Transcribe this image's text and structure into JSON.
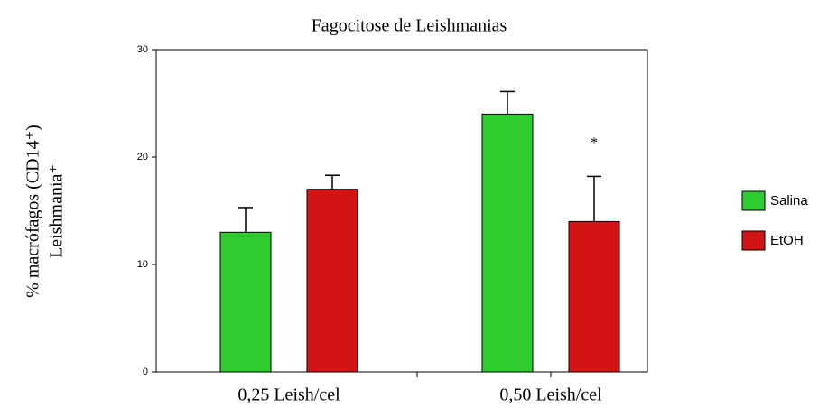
{
  "chart_data": {
    "type": "bar",
    "title": "Fagocitose de Leishmanias",
    "ylabel": [
      "% macrófagos (CD14⁺)",
      "Leishmania⁺"
    ],
    "categories": [
      "0,25 Leish/cel",
      "0,50 Leish/cel"
    ],
    "series": [
      {
        "name": "Salina",
        "color": "#2ecc2e",
        "values": [
          13,
          24
        ],
        "errors": [
          2.3,
          2.1
        ]
      },
      {
        "name": "EtOH",
        "color": "#d41414",
        "values": [
          17,
          14
        ],
        "errors": [
          1.3,
          4.2
        ]
      }
    ],
    "annotation": "*",
    "ylim": [
      0,
      30
    ],
    "yticks": [
      0,
      10,
      20,
      30
    ],
    "legend": "right"
  }
}
